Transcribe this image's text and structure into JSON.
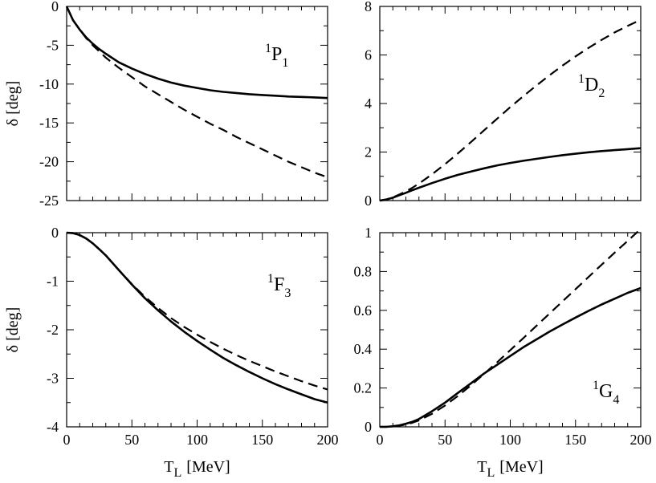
{
  "chart_data": [
    {
      "type": "line",
      "title": "",
      "label": {
        "sup": "1",
        "main": "P",
        "sub": "1"
      },
      "xlabel": {
        "main": "T",
        "sub": "L",
        "unit": "[MeV]"
      },
      "ylabel": "δ [deg]",
      "xlim": [
        0,
        200
      ],
      "ylim": [
        -25,
        0
      ],
      "xticks": [
        "0",
        "50",
        "100",
        "150",
        "200"
      ],
      "yticks": [
        "-25",
        "-20",
        "-15",
        "-10",
        "-5",
        "0"
      ],
      "x": [
        0,
        5,
        10,
        15,
        20,
        25,
        30,
        40,
        50,
        60,
        70,
        80,
        90,
        100,
        110,
        120,
        130,
        140,
        150,
        160,
        170,
        180,
        190,
        200
      ],
      "series": [
        {
          "name": "solid",
          "style": "solid",
          "values": [
            0,
            -1.8,
            -3.0,
            -4.0,
            -4.8,
            -5.5,
            -6.1,
            -7.2,
            -8.0,
            -8.7,
            -9.3,
            -9.8,
            -10.2,
            -10.5,
            -10.8,
            -11.0,
            -11.15,
            -11.3,
            -11.4,
            -11.5,
            -11.6,
            -11.65,
            -11.72,
            -11.8
          ]
        },
        {
          "name": "dashed",
          "style": "dashed",
          "values": [
            0,
            -1.8,
            -3.0,
            -4.1,
            -5.0,
            -5.8,
            -6.6,
            -7.9,
            -9.1,
            -10.3,
            -11.3,
            -12.3,
            -13.3,
            -14.2,
            -15.1,
            -15.9,
            -16.8,
            -17.6,
            -18.4,
            -19.2,
            -20.0,
            -20.7,
            -21.4,
            -22.0
          ]
        }
      ]
    },
    {
      "type": "line",
      "title": "",
      "label": {
        "sup": "1",
        "main": "D",
        "sub": "2"
      },
      "xlabel": {
        "main": "T",
        "sub": "L",
        "unit": "[MeV]"
      },
      "ylabel": "",
      "xlim": [
        0,
        200
      ],
      "ylim": [
        0,
        8
      ],
      "xticks": [
        "0",
        "50",
        "100",
        "150",
        "200"
      ],
      "yticks": [
        "0",
        "2",
        "4",
        "6",
        "8"
      ],
      "x": [
        0,
        5,
        10,
        15,
        20,
        25,
        30,
        40,
        50,
        60,
        70,
        80,
        90,
        100,
        110,
        120,
        130,
        140,
        150,
        160,
        170,
        180,
        190,
        200
      ],
      "series": [
        {
          "name": "solid",
          "style": "solid",
          "values": [
            0,
            0.04,
            0.12,
            0.22,
            0.32,
            0.43,
            0.53,
            0.72,
            0.9,
            1.06,
            1.2,
            1.33,
            1.45,
            1.55,
            1.64,
            1.72,
            1.8,
            1.87,
            1.93,
            1.99,
            2.04,
            2.08,
            2.12,
            2.16
          ]
        },
        {
          "name": "dashed",
          "style": "dashed",
          "values": [
            0,
            0.05,
            0.13,
            0.25,
            0.38,
            0.53,
            0.7,
            1.08,
            1.5,
            1.95,
            2.42,
            2.9,
            3.38,
            3.85,
            4.3,
            4.74,
            5.16,
            5.56,
            5.94,
            6.29,
            6.62,
            6.93,
            7.2,
            7.45
          ]
        }
      ]
    },
    {
      "type": "line",
      "title": "",
      "label": {
        "sup": "1",
        "main": "F",
        "sub": "3"
      },
      "xlabel": {
        "main": "T",
        "sub": "L",
        "unit": "[MeV]"
      },
      "ylabel": "δ [deg]",
      "xlim": [
        0,
        200
      ],
      "ylim": [
        -4,
        0
      ],
      "xticks": [
        "0",
        "50",
        "100",
        "150",
        "200"
      ],
      "yticks": [
        "-4",
        "-3",
        "-2",
        "-1",
        "0"
      ],
      "x": [
        0,
        5,
        10,
        15,
        20,
        25,
        30,
        40,
        50,
        60,
        70,
        80,
        90,
        100,
        110,
        120,
        130,
        140,
        150,
        160,
        170,
        180,
        190,
        200
      ],
      "series": [
        {
          "name": "solid",
          "style": "solid",
          "values": [
            0,
            -0.01,
            -0.05,
            -0.12,
            -0.22,
            -0.34,
            -0.47,
            -0.77,
            -1.07,
            -1.35,
            -1.6,
            -1.83,
            -2.04,
            -2.23,
            -2.41,
            -2.58,
            -2.73,
            -2.87,
            -3.0,
            -3.12,
            -3.23,
            -3.33,
            -3.43,
            -3.5
          ]
        },
        {
          "name": "dashed",
          "style": "dashed",
          "values": [
            0,
            -0.01,
            -0.05,
            -0.12,
            -0.22,
            -0.34,
            -0.47,
            -0.77,
            -1.06,
            -1.32,
            -1.55,
            -1.76,
            -1.94,
            -2.1,
            -2.25,
            -2.39,
            -2.52,
            -2.64,
            -2.75,
            -2.86,
            -2.96,
            -3.06,
            -3.15,
            -3.23
          ]
        }
      ]
    },
    {
      "type": "line",
      "title": "",
      "label": {
        "sup": "1",
        "main": "G",
        "sub": "4"
      },
      "xlabel": {
        "main": "T",
        "sub": "L",
        "unit": "[MeV]"
      },
      "ylabel": "",
      "xlim": [
        0,
        200
      ],
      "ylim": [
        0,
        1
      ],
      "xticks": [
        "0",
        "50",
        "100",
        "150",
        "200"
      ],
      "yticks": [
        "0",
        "0.2",
        "0.4",
        "0.6",
        "0.8",
        "1"
      ],
      "x": [
        0,
        5,
        10,
        15,
        20,
        25,
        30,
        40,
        50,
        60,
        70,
        80,
        90,
        100,
        110,
        120,
        130,
        140,
        150,
        160,
        170,
        180,
        190,
        200
      ],
      "series": [
        {
          "name": "solid",
          "style": "solid",
          "values": [
            0,
            0.0,
            0.003,
            0.008,
            0.016,
            0.026,
            0.04,
            0.08,
            0.125,
            0.175,
            0.225,
            0.275,
            0.32,
            0.365,
            0.41,
            0.45,
            0.49,
            0.527,
            0.563,
            0.597,
            0.63,
            0.66,
            0.69,
            0.715
          ]
        },
        {
          "name": "dashed",
          "style": "dashed",
          "values": [
            0,
            0.0,
            0.002,
            0.006,
            0.012,
            0.021,
            0.033,
            0.067,
            0.11,
            0.16,
            0.215,
            0.273,
            0.333,
            0.395,
            0.457,
            0.52,
            0.583,
            0.646,
            0.709,
            0.772,
            0.835,
            0.897,
            0.958,
            1.02
          ]
        }
      ]
    }
  ]
}
